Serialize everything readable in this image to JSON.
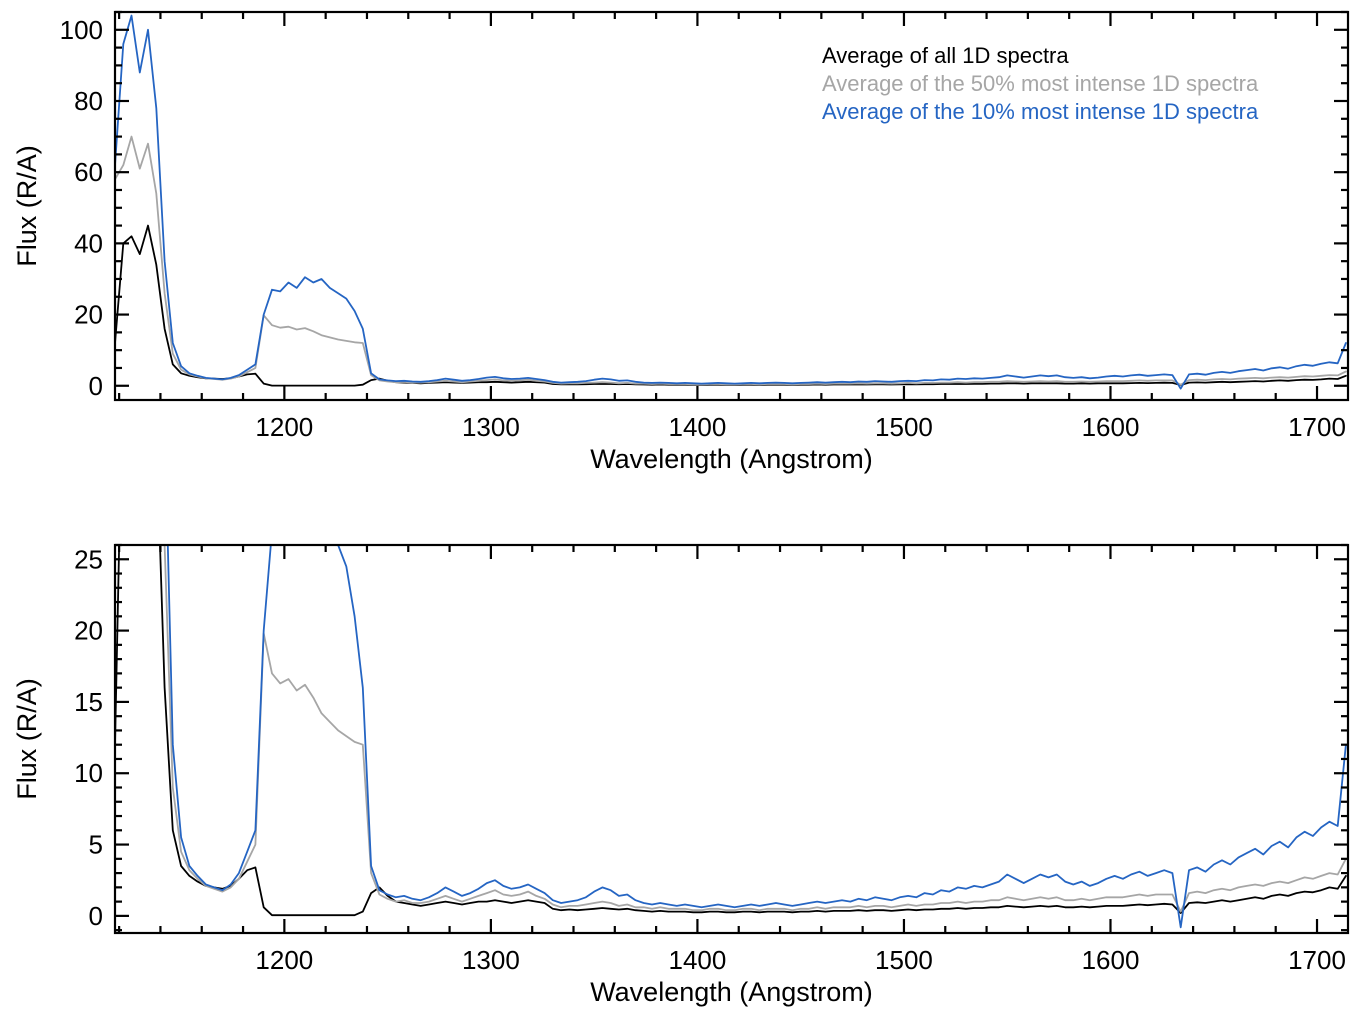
{
  "page": {
    "background": "#ffffff"
  },
  "chart_data": {
    "type": "line",
    "title": "",
    "xlabel": "Wavelength (Angstrom)",
    "ylabel": "Flux (R/A)",
    "xlim": [
      1118,
      1715
    ],
    "x_ticks": [
      1200,
      1300,
      1400,
      1500,
      1600,
      1700
    ],
    "x_minor_step": 20,
    "x_start": 1118,
    "x_step": 4,
    "n_points": 150,
    "grid": false,
    "legend": {
      "position": "top-right-inside",
      "entries": [
        "Average of all 1D spectra",
        "Average of the 50% most intense 1D spectra",
        "Average of the 10% most intense 1D spectra"
      ]
    },
    "panels": [
      {
        "name": "full-scale",
        "ylim": [
          -4,
          105
        ],
        "y_ticks": [
          0,
          20,
          40,
          60,
          80,
          100
        ],
        "y_minor_step": 5,
        "show_legend": true
      },
      {
        "name": "zoomed",
        "ylim": [
          -1.2,
          26
        ],
        "y_ticks": [
          0,
          5,
          10,
          15,
          20,
          25
        ],
        "y_minor_step": 1,
        "show_legend": false
      }
    ],
    "series": [
      {
        "key": "all",
        "name": "Average of all 1D spectra",
        "color": "#000000",
        "values": [
          12,
          40,
          42,
          37,
          45,
          34,
          16,
          6,
          3.5,
          2.8,
          2.4,
          2.1,
          2.0,
          1.9,
          2.1,
          2.6,
          3.2,
          3.4,
          0.6,
          0.05,
          0.05,
          0.05,
          0.05,
          0.05,
          0.05,
          0.05,
          0.05,
          0.05,
          0.05,
          0.05,
          0.3,
          1.6,
          2.0,
          1.4,
          1.0,
          0.9,
          0.8,
          0.7,
          0.8,
          0.9,
          1.0,
          0.9,
          0.8,
          0.9,
          1.0,
          1.0,
          1.1,
          1.0,
          0.9,
          1.0,
          1.1,
          1.0,
          0.9,
          0.5,
          0.4,
          0.45,
          0.4,
          0.45,
          0.5,
          0.55,
          0.5,
          0.45,
          0.5,
          0.4,
          0.35,
          0.3,
          0.35,
          0.3,
          0.3,
          0.3,
          0.25,
          0.25,
          0.3,
          0.3,
          0.25,
          0.25,
          0.3,
          0.3,
          0.25,
          0.3,
          0.3,
          0.3,
          0.25,
          0.3,
          0.3,
          0.35,
          0.3,
          0.35,
          0.35,
          0.35,
          0.4,
          0.35,
          0.4,
          0.4,
          0.35,
          0.4,
          0.45,
          0.4,
          0.45,
          0.45,
          0.5,
          0.5,
          0.55,
          0.5,
          0.55,
          0.55,
          0.6,
          0.6,
          0.7,
          0.65,
          0.6,
          0.65,
          0.7,
          0.65,
          0.7,
          0.6,
          0.6,
          0.65,
          0.6,
          0.65,
          0.7,
          0.7,
          0.7,
          0.75,
          0.8,
          0.75,
          0.8,
          0.85,
          0.8,
          0.2,
          0.9,
          0.95,
          0.9,
          1.0,
          1.1,
          1.0,
          1.1,
          1.2,
          1.3,
          1.2,
          1.4,
          1.5,
          1.4,
          1.6,
          1.7,
          1.65,
          1.8,
          2.0,
          1.9,
          2.8
        ]
      },
      {
        "key": "top50",
        "name": "Average of the 50% most intense 1D spectra",
        "color": "#a6a6a6",
        "values": [
          58,
          62,
          70,
          61,
          68,
          54,
          26,
          9,
          4.5,
          3.2,
          2.6,
          2.1,
          1.9,
          1.7,
          2.0,
          2.6,
          3.8,
          5.0,
          19.8,
          17.0,
          16.3,
          16.6,
          15.8,
          16.2,
          15.3,
          14.2,
          13.6,
          13.0,
          12.6,
          12.2,
          12.0,
          3.0,
          1.5,
          1.2,
          1.0,
          1.1,
          0.9,
          0.9,
          1.0,
          1.2,
          1.4,
          1.2,
          1.0,
          1.2,
          1.4,
          1.6,
          1.8,
          1.5,
          1.4,
          1.5,
          1.7,
          1.4,
          1.2,
          0.8,
          0.6,
          0.7,
          0.7,
          0.8,
          0.9,
          1.0,
          0.9,
          0.7,
          0.8,
          0.6,
          0.6,
          0.5,
          0.6,
          0.5,
          0.5,
          0.5,
          0.4,
          0.4,
          0.5,
          0.5,
          0.4,
          0.4,
          0.5,
          0.5,
          0.4,
          0.5,
          0.5,
          0.5,
          0.4,
          0.5,
          0.5,
          0.6,
          0.5,
          0.6,
          0.6,
          0.6,
          0.7,
          0.6,
          0.7,
          0.7,
          0.6,
          0.7,
          0.8,
          0.7,
          0.8,
          0.8,
          0.9,
          0.9,
          1.0,
          0.9,
          1.0,
          1.0,
          1.1,
          1.1,
          1.3,
          1.2,
          1.1,
          1.2,
          1.3,
          1.2,
          1.3,
          1.1,
          1.1,
          1.2,
          1.1,
          1.2,
          1.3,
          1.3,
          1.3,
          1.4,
          1.5,
          1.4,
          1.5,
          1.5,
          1.5,
          0.3,
          1.6,
          1.7,
          1.6,
          1.8,
          1.9,
          1.8,
          2.0,
          2.1,
          2.2,
          2.1,
          2.3,
          2.4,
          2.3,
          2.5,
          2.7,
          2.6,
          2.8,
          3.0,
          2.9,
          4.0
        ]
      },
      {
        "key": "top10",
        "name": "Average of the 10% most intense 1D spectra",
        "color": "#2565c3",
        "values": [
          62,
          96,
          104,
          88,
          100,
          78,
          35,
          12,
          5.5,
          3.5,
          2.8,
          2.2,
          2.0,
          1.8,
          2.2,
          3.0,
          4.5,
          6.0,
          20,
          27,
          26.5,
          29,
          27.5,
          30.5,
          29,
          30,
          27.5,
          26,
          24.5,
          21,
          16,
          3.5,
          1.8,
          1.5,
          1.3,
          1.4,
          1.2,
          1.1,
          1.3,
          1.6,
          2.0,
          1.7,
          1.4,
          1.6,
          1.9,
          2.3,
          2.5,
          2.1,
          1.9,
          2.0,
          2.2,
          1.9,
          1.6,
          1.1,
          0.9,
          1.0,
          1.1,
          1.3,
          1.7,
          2.0,
          1.8,
          1.4,
          1.5,
          1.1,
          0.9,
          0.8,
          0.9,
          0.8,
          0.7,
          0.8,
          0.7,
          0.6,
          0.7,
          0.8,
          0.7,
          0.6,
          0.7,
          0.8,
          0.7,
          0.8,
          0.9,
          0.8,
          0.7,
          0.8,
          0.9,
          1.0,
          0.9,
          1.0,
          1.1,
          1.0,
          1.2,
          1.1,
          1.3,
          1.2,
          1.1,
          1.3,
          1.4,
          1.3,
          1.6,
          1.5,
          1.8,
          1.7,
          2.0,
          1.9,
          2.1,
          2.0,
          2.2,
          2.4,
          2.9,
          2.6,
          2.3,
          2.6,
          2.9,
          2.7,
          2.9,
          2.4,
          2.2,
          2.4,
          2.1,
          2.3,
          2.6,
          2.8,
          2.6,
          2.9,
          3.1,
          2.8,
          3.0,
          3.2,
          3.0,
          -0.8,
          3.2,
          3.4,
          3.1,
          3.6,
          3.9,
          3.6,
          4.1,
          4.4,
          4.7,
          4.3,
          4.9,
          5.2,
          4.8,
          5.5,
          5.9,
          5.6,
          6.2,
          6.6,
          6.3,
          12.0
        ]
      }
    ]
  }
}
